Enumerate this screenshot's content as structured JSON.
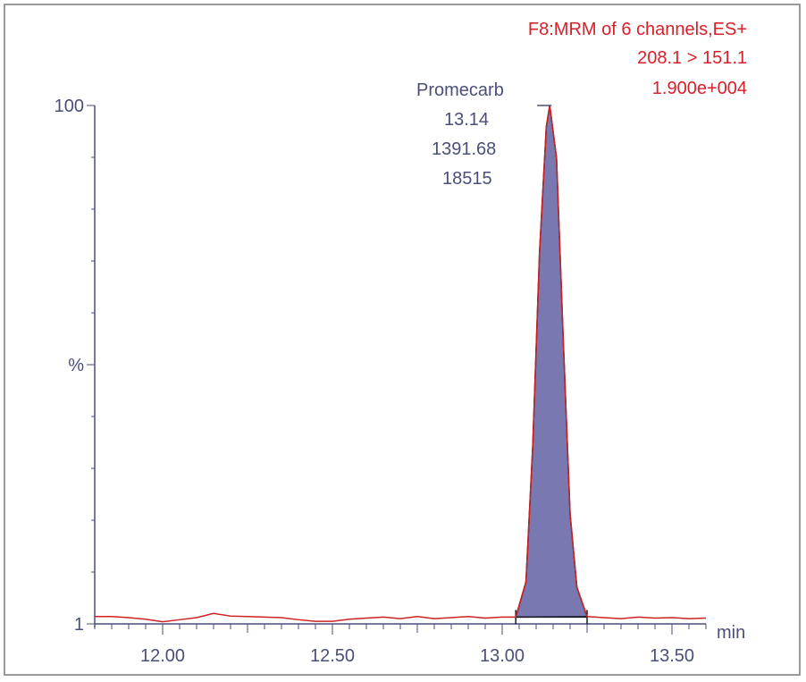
{
  "chart_data": {
    "type": "line",
    "header": [
      "F8:MRM of 6 channels,ES+",
      "208.1 > 151.1",
      "1.900e+004"
    ],
    "ylabel": "%",
    "xunit": "min",
    "xlim": [
      11.8,
      13.6
    ],
    "ylim": [
      1,
      100
    ],
    "x_ticks": [
      12.0,
      12.5,
      13.0,
      13.5
    ],
    "x_tick_labels": [
      "12.00",
      "12.50",
      "13.00",
      "13.50"
    ],
    "y_tick_labels": [
      "100",
      "%",
      "1"
    ],
    "peak": {
      "name": "Promecarb",
      "retention_time": "13.14",
      "area": "1391.68",
      "height": "18515",
      "start": 13.04,
      "apex": 13.14,
      "end": 13.25
    },
    "series": [
      {
        "color": "#cc2222",
        "points": [
          [
            11.8,
            2.4
          ],
          [
            11.85,
            2.4
          ],
          [
            11.9,
            2.2
          ],
          [
            11.95,
            1.9
          ],
          [
            12.0,
            1.4
          ],
          [
            12.05,
            1.8
          ],
          [
            12.1,
            2.2
          ],
          [
            12.15,
            3.0
          ],
          [
            12.2,
            2.5
          ],
          [
            12.25,
            2.4
          ],
          [
            12.3,
            2.3
          ],
          [
            12.35,
            2.2
          ],
          [
            12.4,
            1.8
          ],
          [
            12.45,
            1.5
          ],
          [
            12.5,
            1.5
          ],
          [
            12.55,
            1.9
          ],
          [
            12.6,
            2.1
          ],
          [
            12.65,
            2.3
          ],
          [
            12.7,
            2.0
          ],
          [
            12.75,
            2.4
          ],
          [
            12.8,
            2.0
          ],
          [
            12.85,
            2.2
          ],
          [
            12.9,
            2.4
          ],
          [
            12.95,
            2.1
          ],
          [
            13.0,
            2.3
          ],
          [
            13.04,
            2.3
          ],
          [
            13.07,
            9.0
          ],
          [
            13.09,
            35.0
          ],
          [
            13.11,
            72.0
          ],
          [
            13.13,
            96.0
          ],
          [
            13.14,
            100.0
          ],
          [
            13.16,
            90.0
          ],
          [
            13.18,
            55.0
          ],
          [
            13.2,
            22.0
          ],
          [
            13.22,
            8.0
          ],
          [
            13.25,
            2.4
          ],
          [
            13.3,
            2.2
          ],
          [
            13.35,
            2.0
          ],
          [
            13.4,
            2.3
          ],
          [
            13.45,
            2.1
          ],
          [
            13.5,
            2.2
          ],
          [
            13.55,
            2.0
          ],
          [
            13.6,
            2.1
          ]
        ]
      }
    ],
    "peak_fill": "#7a78b0",
    "axis_color": "#4a4f78"
  }
}
